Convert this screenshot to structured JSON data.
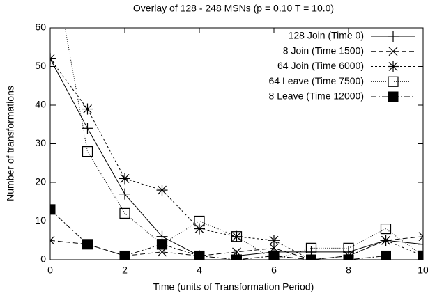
{
  "chart_data": {
    "type": "line",
    "title": "Overlay of 128 - 248 MSNs (p = 0.10 T = 10.0)",
    "x_label": "Time (units of Transformation Period)",
    "y_label": "Number of transformations",
    "x": [
      0,
      1,
      2,
      3,
      4,
      5,
      6,
      7,
      8,
      9,
      10
    ],
    "series": [
      {
        "name": "128 Join (Time 0)",
        "color": "#000000",
        "marker": "plus",
        "line_style": "solid",
        "values": [
          52,
          34,
          17,
          6,
          1,
          1,
          2,
          2,
          2,
          5,
          4
        ]
      },
      {
        "name": "8 Join (Time 1500)",
        "color": "#000000",
        "marker": "cross",
        "line_style": "dashed",
        "values": [
          5,
          4,
          1,
          2,
          1,
          2,
          3,
          0,
          1,
          5,
          6
        ]
      },
      {
        "name": "64 Join (Time 6000)",
        "color": "#000000",
        "marker": "star",
        "line_style": "short-dashed",
        "values": [
          52,
          39,
          21,
          18,
          8,
          6,
          5,
          0,
          1,
          5,
          1
        ]
      },
      {
        "name": "64 Leave (Time 7500)",
        "color": "#000000",
        "marker": "open-square",
        "line_style": "dotted",
        "values": [
          81,
          28,
          12,
          4,
          10,
          6,
          0,
          3,
          3,
          8,
          1
        ]
      },
      {
        "name": "8 Leave (Time 12000)",
        "color": "#000000",
        "marker": "filled-square",
        "line_style": "dash-dot",
        "values": [
          13,
          4,
          1,
          4,
          1,
          0,
          1,
          0,
          0,
          1,
          1
        ]
      }
    ],
    "xlim": [
      0,
      10
    ],
    "ylim": [
      0,
      60
    ],
    "xticks": [
      0,
      2,
      4,
      6,
      8,
      10
    ],
    "yticks": [
      0,
      10,
      20,
      30,
      40,
      50,
      60
    ],
    "legend": "top-right"
  }
}
